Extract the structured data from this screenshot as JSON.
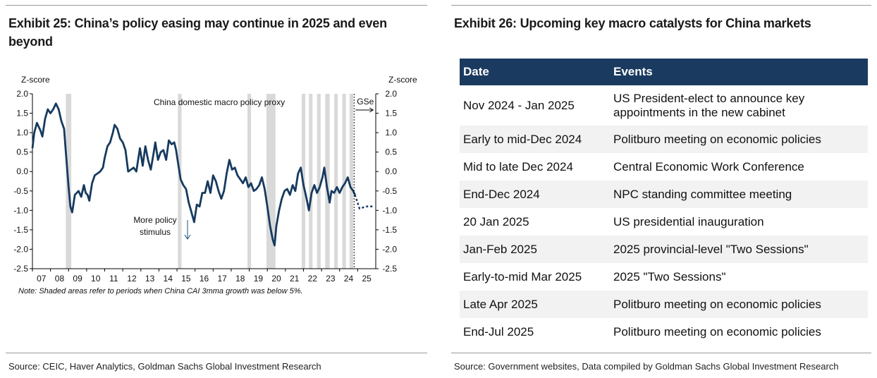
{
  "left": {
    "title": "Exhibit 25: China’s policy easing may continue in 2025 and even beyond",
    "source": "Source: CEIC, Haver Analytics, Goldman Sachs Global Investment Research",
    "note": "Note: Shaded areas refer to periods when China CAI 3mma growth was below 5%."
  },
  "right": {
    "title": "Exhibit 26: Upcoming key macro catalysts for China markets",
    "source": "Source: Government websites, Data compiled by Goldman Sachs Global Investment Research",
    "table": {
      "headers": [
        "Date",
        "Events"
      ],
      "rows": [
        [
          "Nov 2024 - Jan 2025",
          "US President-elect to announce key appointments in the new cabinet"
        ],
        [
          "Early to mid-Dec 2024",
          "Politburo meeting on economic policies"
        ],
        [
          "Mid to late Dec 2024",
          "Central Economic Work Conference"
        ],
        [
          "End-Dec 2024",
          "NPC standing committee meeting"
        ],
        [
          "20 Jan 2025",
          "US presidential inauguration"
        ],
        [
          "Jan-Feb 2025",
          "2025 provincial-level \"Two Sessions\""
        ],
        [
          "Early-to-mid Mar 2025",
          "2025 \"Two Sessions\""
        ],
        [
          "Late Apr 2025",
          "Politburo meeting on economic policies"
        ],
        [
          "End-Jul 2025",
          "Politburo meeting on economic policies"
        ]
      ]
    }
  },
  "colors": {
    "line": "#163a5f",
    "shade": "#d9d9d9",
    "header_bg": "#1b3a5f",
    "row_shade": "#f2f2f2"
  },
  "chart_data": {
    "type": "line",
    "y_left_label": "Z-score",
    "y_right_label": "Z-score",
    "ylim": [
      -2.5,
      2.0
    ],
    "y_ticks": [
      "2.0",
      "1.5",
      "1.0",
      "0.5",
      "0.0",
      "-0.5",
      "-1.0",
      "-1.5",
      "-2.0",
      "-2.5"
    ],
    "x_ticks": [
      "07",
      "08",
      "09",
      "10",
      "11",
      "12",
      "13",
      "14",
      "15",
      "16",
      "17",
      "18",
      "19",
      "20",
      "21",
      "22",
      "23",
      "24",
      "25"
    ],
    "xlim": [
      2007,
      2026
    ],
    "series_label": "China domestic macro policy proxy",
    "forecast_label": "GSe",
    "forecast_start": 2024.8,
    "annotation": "More policy stimulus",
    "shaded_periods": [
      [
        2008.85,
        2009.15
      ],
      [
        2015.05,
        2015.25
      ],
      [
        2018.9,
        2019.1
      ],
      [
        2019.95,
        2020.45
      ],
      [
        2021.9,
        2022.1
      ],
      [
        2022.3,
        2022.5
      ],
      [
        2022.75,
        2022.95
      ],
      [
        2023.2,
        2023.45
      ],
      [
        2023.7,
        2023.9
      ],
      [
        2024.15,
        2024.35
      ],
      [
        2024.55,
        2024.75
      ]
    ],
    "series": [
      {
        "values": [
          [
            2007.0,
            0.6
          ],
          [
            2007.1,
            1.0
          ],
          [
            2007.25,
            1.25
          ],
          [
            2007.45,
            1.05
          ],
          [
            2007.55,
            0.9
          ],
          [
            2007.7,
            1.35
          ],
          [
            2007.85,
            1.6
          ],
          [
            2008.0,
            1.5
          ],
          [
            2008.15,
            1.6
          ],
          [
            2008.3,
            1.75
          ],
          [
            2008.45,
            1.6
          ],
          [
            2008.6,
            1.3
          ],
          [
            2008.75,
            1.1
          ],
          [
            2008.85,
            0.5
          ],
          [
            2009.0,
            -0.4
          ],
          [
            2009.1,
            -0.9
          ],
          [
            2009.2,
            -1.05
          ],
          [
            2009.35,
            -0.6
          ],
          [
            2009.55,
            -0.5
          ],
          [
            2009.7,
            -0.65
          ],
          [
            2009.85,
            -0.35
          ],
          [
            2009.95,
            -0.55
          ],
          [
            2010.05,
            -0.6
          ],
          [
            2010.15,
            -0.75
          ],
          [
            2010.3,
            -0.3
          ],
          [
            2010.45,
            -0.1
          ],
          [
            2010.6,
            -0.05
          ],
          [
            2010.75,
            0.0
          ],
          [
            2010.9,
            0.1
          ],
          [
            2011.0,
            0.35
          ],
          [
            2011.15,
            0.65
          ],
          [
            2011.3,
            0.75
          ],
          [
            2011.45,
            1.0
          ],
          [
            2011.55,
            1.2
          ],
          [
            2011.7,
            1.1
          ],
          [
            2011.85,
            0.85
          ],
          [
            2012.0,
            0.75
          ],
          [
            2012.15,
            0.55
          ],
          [
            2012.3,
            0.0
          ],
          [
            2012.45,
            0.05
          ],
          [
            2012.6,
            0.1
          ],
          [
            2012.75,
            0.0
          ],
          [
            2012.85,
            0.3
          ],
          [
            2012.95,
            0.6
          ],
          [
            2013.1,
            0.15
          ],
          [
            2013.25,
            0.65
          ],
          [
            2013.4,
            0.3
          ],
          [
            2013.55,
            0.05
          ],
          [
            2013.7,
            0.45
          ],
          [
            2013.8,
            0.75
          ],
          [
            2013.95,
            0.3
          ],
          [
            2014.1,
            0.5
          ],
          [
            2014.25,
            0.55
          ],
          [
            2014.4,
            0.3
          ],
          [
            2014.55,
            0.8
          ],
          [
            2014.7,
            0.7
          ],
          [
            2014.85,
            0.75
          ],
          [
            2014.95,
            0.55
          ],
          [
            2015.05,
            0.25
          ],
          [
            2015.2,
            -0.2
          ],
          [
            2015.35,
            -0.35
          ],
          [
            2015.5,
            -0.45
          ],
          [
            2015.65,
            -0.8
          ],
          [
            2015.8,
            -1.05
          ],
          [
            2015.95,
            -1.3
          ],
          [
            2016.1,
            -0.85
          ],
          [
            2016.25,
            -0.9
          ],
          [
            2016.4,
            -0.55
          ],
          [
            2016.55,
            -0.55
          ],
          [
            2016.7,
            -0.25
          ],
          [
            2016.85,
            -0.55
          ],
          [
            2017.0,
            -0.1
          ],
          [
            2017.15,
            -0.25
          ],
          [
            2017.3,
            -0.5
          ],
          [
            2017.45,
            -0.7
          ],
          [
            2017.6,
            -0.5
          ],
          [
            2017.75,
            -0.05
          ],
          [
            2017.9,
            0.3
          ],
          [
            2018.05,
            0.05
          ],
          [
            2018.2,
            0.1
          ],
          [
            2018.35,
            -0.1
          ],
          [
            2018.5,
            -0.2
          ],
          [
            2018.65,
            -0.3
          ],
          [
            2018.8,
            -0.15
          ],
          [
            2018.95,
            -0.4
          ],
          [
            2019.1,
            -0.3
          ],
          [
            2019.25,
            -0.5
          ],
          [
            2019.4,
            -0.45
          ],
          [
            2019.55,
            -0.35
          ],
          [
            2019.7,
            -0.15
          ],
          [
            2019.85,
            -0.45
          ],
          [
            2020.0,
            -0.9
          ],
          [
            2020.15,
            -1.4
          ],
          [
            2020.3,
            -1.75
          ],
          [
            2020.4,
            -1.9
          ],
          [
            2020.5,
            -1.4
          ],
          [
            2020.65,
            -1.0
          ],
          [
            2020.8,
            -0.7
          ],
          [
            2020.95,
            -0.5
          ],
          [
            2021.1,
            -0.45
          ],
          [
            2021.25,
            -0.6
          ],
          [
            2021.4,
            -0.35
          ],
          [
            2021.55,
            -0.5
          ],
          [
            2021.7,
            -0.05
          ],
          [
            2021.85,
            0.1
          ],
          [
            2022.0,
            -0.35
          ],
          [
            2022.15,
            -0.65
          ],
          [
            2022.3,
            -1.0
          ],
          [
            2022.45,
            -0.55
          ],
          [
            2022.6,
            -0.35
          ],
          [
            2022.75,
            -0.55
          ],
          [
            2022.9,
            -0.4
          ],
          [
            2023.05,
            -0.15
          ],
          [
            2023.15,
            0.1
          ],
          [
            2023.3,
            -0.4
          ],
          [
            2023.45,
            -0.8
          ],
          [
            2023.55,
            -0.5
          ],
          [
            2023.7,
            -0.55
          ],
          [
            2023.85,
            -0.4
          ],
          [
            2024.0,
            -0.55
          ],
          [
            2024.15,
            -0.4
          ],
          [
            2024.3,
            -0.3
          ],
          [
            2024.45,
            -0.15
          ],
          [
            2024.6,
            -0.4
          ],
          [
            2024.75,
            -0.5
          ],
          [
            2024.85,
            -0.6
          ]
        ]
      },
      {
        "values": [
          [
            2024.85,
            -0.6
          ],
          [
            2025.1,
            -0.95
          ],
          [
            2025.5,
            -0.9
          ],
          [
            2025.9,
            -0.9
          ]
        ]
      }
    ]
  }
}
